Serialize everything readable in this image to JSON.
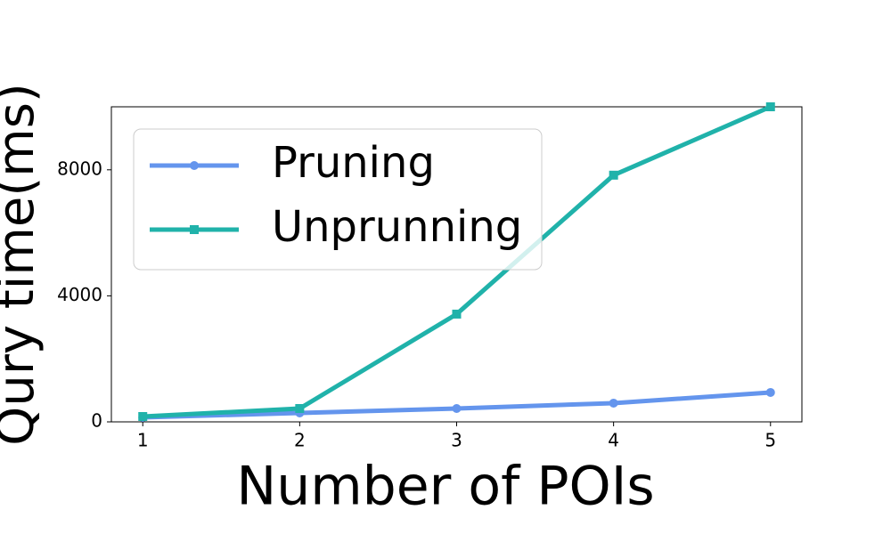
{
  "chart_data": {
    "type": "line",
    "x_label": "Number of POIs",
    "y_label": "Qury time(ms)",
    "x": [
      1,
      2,
      3,
      4,
      5
    ],
    "series": [
      {
        "name": "Pruning",
        "color": "#6495ed",
        "marker": "circle",
        "values": [
          141,
          283,
          424,
          594,
          933
        ]
      },
      {
        "name": "Unprunning",
        "color": "#20b2aa",
        "marker": "square",
        "values": [
          170,
          424,
          3420,
          7830,
          10000
        ]
      }
    ],
    "xlim": [
      0.8,
      5.2
    ],
    "xticks": [
      1,
      2,
      3,
      4,
      5
    ],
    "ylim": [
      0,
      10000
    ],
    "yticks": [
      0,
      4000,
      8000
    ],
    "legend": "upper left"
  }
}
